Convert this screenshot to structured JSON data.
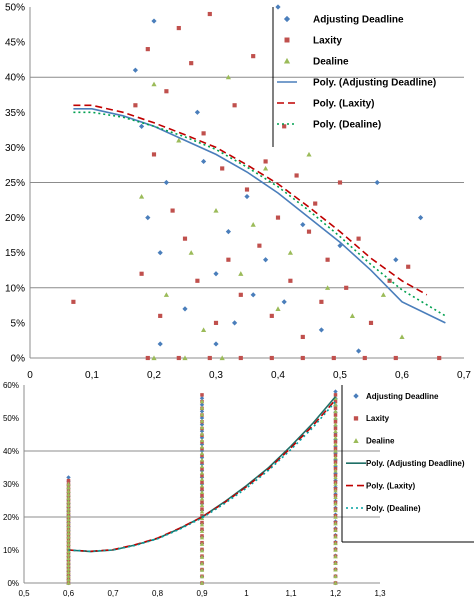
{
  "chart_data": [
    {
      "type": "scatter",
      "title": "",
      "xlabel": "",
      "ylabel": "",
      "xlim": [
        0,
        0.7
      ],
      "ylim": [
        0,
        0.5
      ],
      "x_ticks": [
        "0",
        "0,1",
        "0,2",
        "0,3",
        "0,4",
        "0,5",
        "0,6",
        "0,7"
      ],
      "y_ticks": [
        "0%",
        "5%",
        "10%",
        "15%",
        "20%",
        "25%",
        "30%",
        "35%",
        "40%",
        "45%",
        "50%"
      ],
      "gridlines_y": [
        0.1,
        0.25,
        0.4
      ],
      "legend_position": "top-right",
      "series": [
        {
          "name": "Adjusting Deadline",
          "marker": "diamond",
          "color": "#4a7ebb",
          "points": [
            [
              0.17,
              0.41
            ],
            [
              0.18,
              0.33
            ],
            [
              0.19,
              0.2
            ],
            [
              0.2,
              0.48
            ],
            [
              0.21,
              0.15
            ],
            [
              0.22,
              0.25
            ],
            [
              0.25,
              0.07
            ],
            [
              0.27,
              0.35
            ],
            [
              0.28,
              0.28
            ],
            [
              0.3,
              0.12
            ],
            [
              0.32,
              0.18
            ],
            [
              0.33,
              0.05
            ],
            [
              0.35,
              0.23
            ],
            [
              0.38,
              0.14
            ],
            [
              0.4,
              0.5
            ],
            [
              0.41,
              0.08
            ],
            [
              0.44,
              0.19
            ],
            [
              0.47,
              0.04
            ],
            [
              0.5,
              0.16
            ],
            [
              0.53,
              0.01
            ],
            [
              0.56,
              0.25
            ],
            [
              0.59,
              0.14
            ],
            [
              0.63,
              0.2
            ],
            [
              0.21,
              0.02
            ],
            [
              0.3,
              0.02
            ],
            [
              0.36,
              0.09
            ]
          ]
        },
        {
          "name": "Laxity",
          "marker": "square",
          "color": "#c0504d",
          "points": [
            [
              0.07,
              0.08
            ],
            [
              0.17,
              0.36
            ],
            [
              0.18,
              0.12
            ],
            [
              0.19,
              0.44
            ],
            [
              0.2,
              0.29
            ],
            [
              0.21,
              0.06
            ],
            [
              0.22,
              0.38
            ],
            [
              0.23,
              0.21
            ],
            [
              0.24,
              0.47
            ],
            [
              0.25,
              0.17
            ],
            [
              0.26,
              0.42
            ],
            [
              0.27,
              0.11
            ],
            [
              0.28,
              0.32
            ],
            [
              0.29,
              0.49
            ],
            [
              0.3,
              0.05
            ],
            [
              0.31,
              0.27
            ],
            [
              0.32,
              0.14
            ],
            [
              0.33,
              0.36
            ],
            [
              0.34,
              0.09
            ],
            [
              0.35,
              0.24
            ],
            [
              0.36,
              0.43
            ],
            [
              0.37,
              0.16
            ],
            [
              0.38,
              0.28
            ],
            [
              0.39,
              0.06
            ],
            [
              0.4,
              0.2
            ],
            [
              0.41,
              0.33
            ],
            [
              0.42,
              0.11
            ],
            [
              0.43,
              0.26
            ],
            [
              0.44,
              0.03
            ],
            [
              0.45,
              0.18
            ],
            [
              0.46,
              0.22
            ],
            [
              0.47,
              0.08
            ],
            [
              0.48,
              0.14
            ],
            [
              0.5,
              0.25
            ],
            [
              0.51,
              0.1
            ],
            [
              0.53,
              0.17
            ],
            [
              0.55,
              0.05
            ],
            [
              0.58,
              0.11
            ],
            [
              0.61,
              0.13
            ],
            [
              0.66,
              0.0
            ],
            [
              0.19,
              0.0
            ],
            [
              0.24,
              0.0
            ],
            [
              0.29,
              0.0
            ],
            [
              0.34,
              0.0
            ],
            [
              0.39,
              0.0
            ],
            [
              0.44,
              0.0
            ],
            [
              0.49,
              0.0
            ],
            [
              0.54,
              0.0
            ],
            [
              0.59,
              0.0
            ]
          ]
        },
        {
          "name": "Dealine",
          "marker": "triangle",
          "color": "#9bbb59",
          "points": [
            [
              0.18,
              0.23
            ],
            [
              0.2,
              0.39
            ],
            [
              0.22,
              0.09
            ],
            [
              0.24,
              0.31
            ],
            [
              0.26,
              0.15
            ],
            [
              0.28,
              0.04
            ],
            [
              0.3,
              0.21
            ],
            [
              0.32,
              0.4
            ],
            [
              0.34,
              0.12
            ],
            [
              0.36,
              0.19
            ],
            [
              0.38,
              0.27
            ],
            [
              0.4,
              0.07
            ],
            [
              0.42,
              0.15
            ],
            [
              0.45,
              0.29
            ],
            [
              0.48,
              0.1
            ],
            [
              0.52,
              0.06
            ],
            [
              0.57,
              0.09
            ],
            [
              0.6,
              0.03
            ],
            [
              0.2,
              0.0
            ],
            [
              0.25,
              0.0
            ],
            [
              0.31,
              0.0
            ]
          ]
        }
      ],
      "trendlines": [
        {
          "name": "Poly. (Adjusting Deadline)",
          "style": "solid",
          "color": "#4a7ebb",
          "points": [
            [
              0.07,
              0.355
            ],
            [
              0.1,
              0.355
            ],
            [
              0.15,
              0.345
            ],
            [
              0.2,
              0.33
            ],
            [
              0.25,
              0.31
            ],
            [
              0.3,
              0.29
            ],
            [
              0.35,
              0.265
            ],
            [
              0.4,
              0.235
            ],
            [
              0.45,
              0.2
            ],
            [
              0.5,
              0.165
            ],
            [
              0.55,
              0.125
            ],
            [
              0.6,
              0.08
            ],
            [
              0.67,
              0.05
            ]
          ]
        },
        {
          "name": "Poly. (Laxity)",
          "style": "dashed",
          "color": "#c00000",
          "points": [
            [
              0.07,
              0.36
            ],
            [
              0.1,
              0.36
            ],
            [
              0.15,
              0.35
            ],
            [
              0.2,
              0.335
            ],
            [
              0.25,
              0.318
            ],
            [
              0.3,
              0.3
            ],
            [
              0.35,
              0.275
            ],
            [
              0.4,
              0.248
            ],
            [
              0.45,
              0.215
            ],
            [
              0.5,
              0.18
            ],
            [
              0.55,
              0.142
            ],
            [
              0.6,
              0.11
            ],
            [
              0.64,
              0.09
            ]
          ]
        },
        {
          "name": "Poly. (Dealine)",
          "style": "dotted",
          "color": "#00a050",
          "points": [
            [
              0.07,
              0.35
            ],
            [
              0.1,
              0.35
            ],
            [
              0.15,
              0.343
            ],
            [
              0.2,
              0.33
            ],
            [
              0.25,
              0.315
            ],
            [
              0.3,
              0.297
            ],
            [
              0.35,
              0.272
            ],
            [
              0.4,
              0.244
            ],
            [
              0.45,
              0.21
            ],
            [
              0.5,
              0.173
            ],
            [
              0.55,
              0.133
            ],
            [
              0.6,
              0.097
            ],
            [
              0.67,
              0.06
            ]
          ]
        }
      ]
    },
    {
      "type": "scatter",
      "title": "",
      "xlabel": "",
      "ylabel": "",
      "xlim": [
        0.5,
        1.3
      ],
      "ylim": [
        0,
        0.6
      ],
      "x_ticks": [
        "0,5",
        "0,6",
        "0,7",
        "0,8",
        "0,9",
        "1",
        "1,1",
        "1,2",
        "1,3"
      ],
      "y_ticks": [
        "0%",
        "10%",
        "20%",
        "30%",
        "40%",
        "50%",
        "60%"
      ],
      "gridlines_y": [
        0.2,
        0.4
      ],
      "legend_position": "right",
      "series": [
        {
          "name": "Adjusting Deadline",
          "marker": "diamond",
          "color": "#4a7ebb",
          "x_values": [
            0.6,
            0.9,
            1.2
          ],
          "y_range": [
            [
              0.0,
              0.32
            ],
            [
              0.0,
              0.56
            ],
            [
              0.0,
              0.58
            ]
          ]
        },
        {
          "name": "Laxity",
          "marker": "square",
          "color": "#c0504d",
          "x_values": [
            0.6,
            0.9,
            1.2
          ],
          "y_range": [
            [
              0.0,
              0.31
            ],
            [
              0.0,
              0.57
            ],
            [
              0.0,
              0.57
            ]
          ]
        },
        {
          "name": "Dealine",
          "marker": "triangle",
          "color": "#9bbb59",
          "x_values": [
            0.6,
            0.9,
            1.2
          ],
          "y_range": [
            [
              0.0,
              0.3
            ],
            [
              0.0,
              0.55
            ],
            [
              0.0,
              0.56
            ]
          ]
        }
      ],
      "trendlines": [
        {
          "name": "Poly. (Adjusting Deadline)",
          "style": "solid",
          "color": "#1f6f66",
          "points": [
            [
              0.6,
              0.1
            ],
            [
              0.65,
              0.095
            ],
            [
              0.7,
              0.1
            ],
            [
              0.75,
              0.115
            ],
            [
              0.8,
              0.135
            ],
            [
              0.85,
              0.165
            ],
            [
              0.9,
              0.2
            ],
            [
              0.95,
              0.245
            ],
            [
              1.0,
              0.295
            ],
            [
              1.05,
              0.35
            ],
            [
              1.1,
              0.415
            ],
            [
              1.15,
              0.485
            ],
            [
              1.2,
              0.565
            ]
          ]
        },
        {
          "name": "Poly. (Laxity)",
          "style": "dashed",
          "color": "#c00000",
          "points": [
            [
              0.6,
              0.1
            ],
            [
              0.65,
              0.096
            ],
            [
              0.7,
              0.101
            ],
            [
              0.75,
              0.116
            ],
            [
              0.8,
              0.136
            ],
            [
              0.85,
              0.166
            ],
            [
              0.9,
              0.2
            ],
            [
              0.95,
              0.243
            ],
            [
              1.0,
              0.292
            ],
            [
              1.05,
              0.346
            ],
            [
              1.1,
              0.41
            ],
            [
              1.15,
              0.478
            ],
            [
              1.2,
              0.555
            ]
          ]
        },
        {
          "name": "Poly. (Dealine)",
          "style": "dotted",
          "color": "#00a0a0",
          "points": [
            [
              0.6,
              0.1
            ],
            [
              0.65,
              0.096
            ],
            [
              0.7,
              0.1
            ],
            [
              0.75,
              0.114
            ],
            [
              0.8,
              0.134
            ],
            [
              0.85,
              0.163
            ],
            [
              0.9,
              0.197
            ],
            [
              0.95,
              0.24
            ],
            [
              1.0,
              0.288
            ],
            [
              1.05,
              0.342
            ],
            [
              1.1,
              0.405
            ],
            [
              1.15,
              0.472
            ],
            [
              1.2,
              0.55
            ]
          ]
        }
      ]
    }
  ]
}
